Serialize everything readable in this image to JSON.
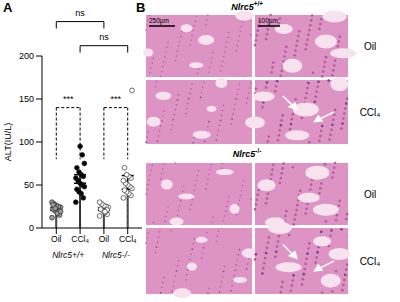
{
  "chart_data": {
    "type": "bar",
    "panel_label": "A",
    "y_label": "ALT(IU/L)",
    "categories": [
      "Oil",
      "CCl₄",
      "Oil",
      "CCl₄"
    ],
    "group_labels": [
      "Nlrc5+/+",
      "Nlrc5-/-"
    ],
    "values": [
      22,
      57,
      22,
      53
    ],
    "errors": [
      1.5,
      5,
      1.5,
      8
    ],
    "colors": [
      "#ffffff",
      "#555555",
      "#ffffff",
      "#555555"
    ],
    "point_groups": [
      {
        "values": [
          12,
          15,
          18,
          20,
          22,
          24,
          25,
          26,
          28,
          30,
          20,
          17,
          23,
          27,
          19
        ],
        "marker": "filled",
        "color": "#9e9e9e"
      },
      {
        "values": [
          30,
          35,
          40,
          42,
          45,
          48,
          50,
          52,
          55,
          58,
          60,
          62,
          65,
          70,
          75,
          85,
          95
        ],
        "marker": "filled",
        "color": "#000000"
      },
      {
        "values": [
          14,
          16,
          18,
          20,
          22,
          24,
          25,
          26,
          28,
          30,
          21,
          19
        ],
        "marker": "open",
        "color": "#333333"
      },
      {
        "values": [
          35,
          38,
          40,
          42,
          44,
          46,
          48,
          50,
          52,
          55,
          58,
          60,
          62,
          70,
          160
        ],
        "marker": "open",
        "color": "#333333"
      }
    ],
    "annotations": [
      {
        "text": "***",
        "from": 0,
        "to": 1
      },
      {
        "text": "***",
        "from": 2,
        "to": 3
      },
      {
        "text": "ns",
        "from": 0,
        "to": 2
      },
      {
        "text": "ns",
        "from": 1,
        "to": 3
      }
    ],
    "ylim": [
      0,
      200
    ],
    "yticks": [
      0,
      50,
      100,
      150,
      200
    ]
  },
  "histology": {
    "panel_label": "B",
    "blocks": [
      {
        "title": "Nlrc5+/+",
        "rows": [
          "Oil",
          "CCl₄"
        ]
      },
      {
        "title": "Nlrc5-/-",
        "rows": [
          "Oil",
          "CCl₄"
        ]
      }
    ],
    "scale_bars": [
      "250µm",
      "100µm"
    ]
  }
}
